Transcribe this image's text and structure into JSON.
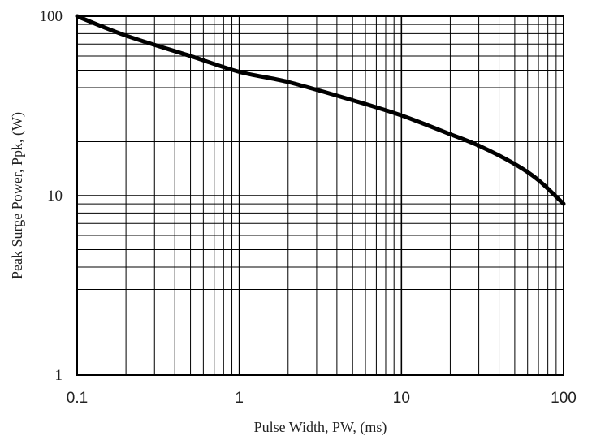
{
  "chart_data": {
    "type": "line",
    "title": "",
    "xlabel": "Pulse Width, PW, (ms)",
    "ylabel": "Peak Surge Power, Ppk, (W)",
    "x_scale": "log",
    "y_scale": "log",
    "xlim": [
      0.1,
      100
    ],
    "ylim": [
      1,
      100
    ],
    "grid": true,
    "x_ticks": [
      0.1,
      1,
      10,
      100
    ],
    "x_tick_labels": [
      "0.1",
      "1",
      "10",
      "100"
    ],
    "y_ticks": [
      1,
      10,
      100
    ],
    "y_tick_labels": [
      "1",
      "10",
      "100"
    ],
    "series": [
      {
        "x": [
          0.1,
          0.2,
          0.5,
          1,
          2,
          5,
          10,
          20,
          30,
          50,
          70,
          100
        ],
        "y": [
          100,
          78,
          60,
          49,
          43,
          34,
          28,
          22,
          19,
          15,
          12.2,
          9
        ]
      }
    ],
    "colors": {
      "line": "#000000",
      "grid": "#000000"
    }
  }
}
